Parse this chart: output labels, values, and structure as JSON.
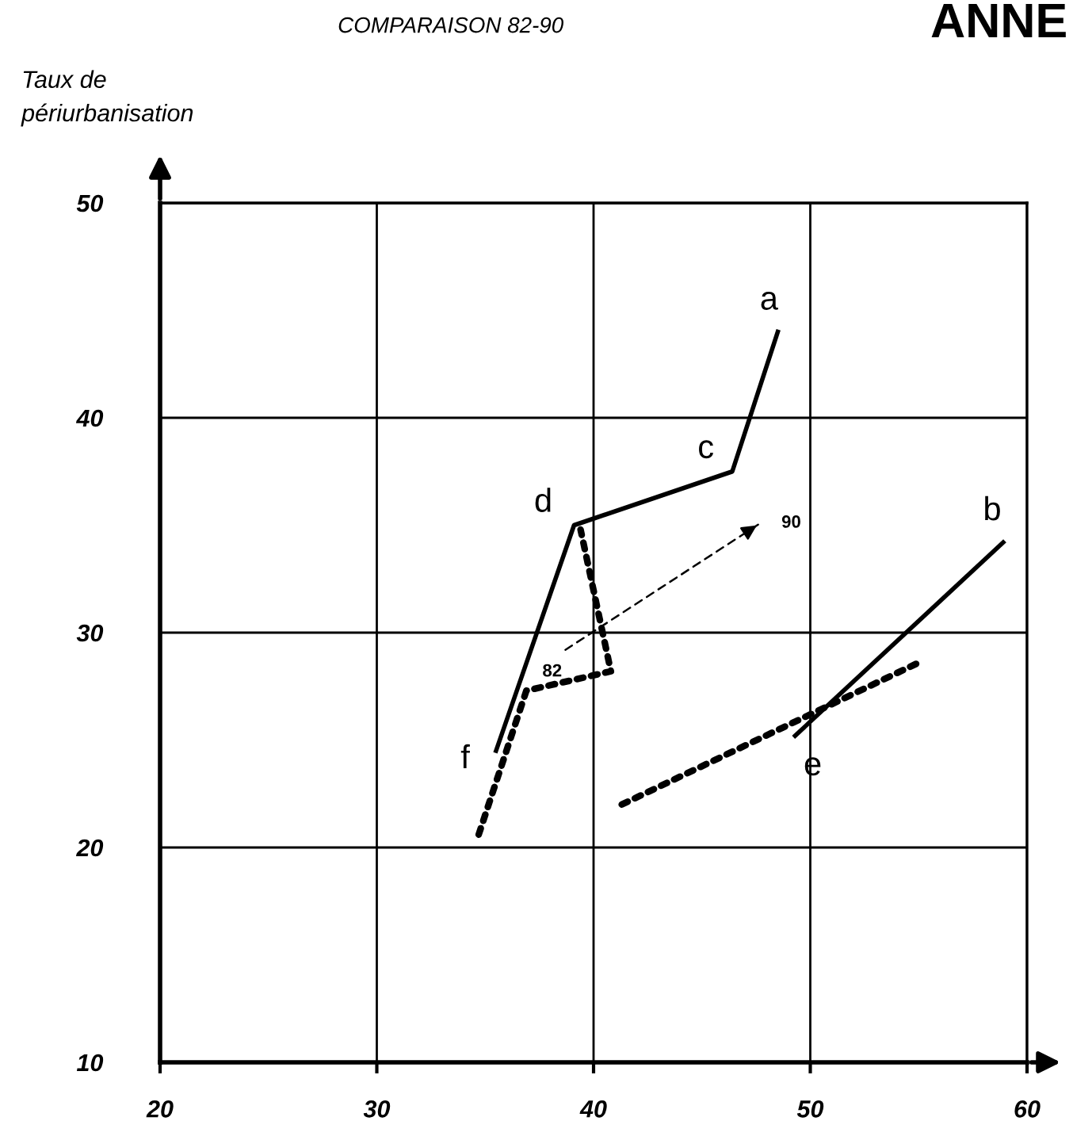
{
  "chart_data": {
    "type": "line",
    "title": "COMPARAISON 82-90",
    "ylabel": "Taux de\npériurbanisation",
    "xlim": [
      20,
      60
    ],
    "ylim": [
      10,
      50
    ],
    "xticks": [
      20,
      30,
      40,
      50,
      60
    ],
    "yticks": [
      10,
      20,
      30,
      40,
      50
    ],
    "grid": true,
    "marker": "none",
    "series": [
      {
        "color": "#000000",
        "line_style": "solid",
        "x": [
          35.5,
          39.1,
          46.4,
          48.5
        ],
        "values": [
          24.5,
          35.0,
          37.5,
          44.0
        ]
      },
      {
        "color": "#000000",
        "line_style": "dotted",
        "x": [
          34.7,
          36.9,
          40.8,
          39.4
        ],
        "values": [
          20.6,
          27.3,
          28.2,
          34.8
        ]
      },
      {
        "color": "#000000",
        "line_style": "dotted",
        "x": [
          41.3,
          55.2
        ],
        "values": [
          22.0,
          28.7
        ]
      },
      {
        "color": "#000000",
        "line_style": "solid",
        "x": [
          49.3,
          58.9
        ],
        "values": [
          25.2,
          34.2
        ]
      },
      {
        "color": "#000000",
        "line_style": "dashed",
        "x": [
          38.7,
          47.7
        ],
        "values": [
          29.2,
          35.1
        ]
      }
    ],
    "annotations": [
      {
        "text": "a",
        "x": 48.5,
        "y": 44.0
      },
      {
        "text": "b",
        "x": 58.9,
        "y": 34.2
      },
      {
        "text": "c",
        "x": 46.4,
        "y": 37.5
      },
      {
        "text": "d",
        "x": 39.1,
        "y": 35.0
      },
      {
        "text": "e",
        "x": 49.3,
        "y": 25.2
      },
      {
        "text": "f",
        "x": 35.5,
        "y": 24.5
      },
      {
        "text": "82",
        "x": 38.7,
        "y": 29.2
      },
      {
        "text": "90",
        "x": 47.7,
        "y": 35.1
      },
      "ANNE"
    ]
  }
}
